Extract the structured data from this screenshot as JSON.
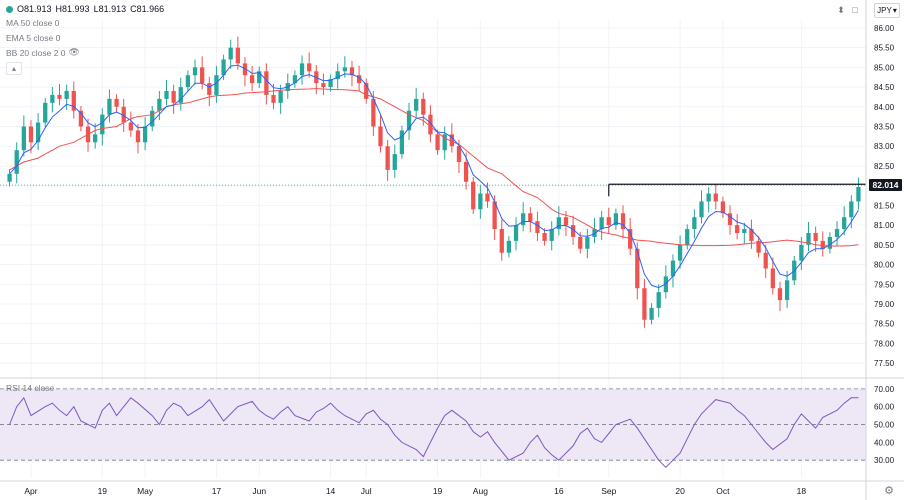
{
  "ohlc": {
    "open": "O81.913",
    "high": "H81.993",
    "low": "L81.913",
    "close": "C81.966",
    "color": "#26a69a"
  },
  "indicators": [
    "MA 50 close 0",
    "EMA 5 close 0",
    "BB 20 close 2 0"
  ],
  "currency": "JPY",
  "rsi_label": "RSI 14 close",
  "colors": {
    "up": "#26a69a",
    "down": "#ef5350",
    "ma": "#ef5350",
    "ema": "#2962ff",
    "rsi": "#7e57c2",
    "rsi_band": "#ede7f6"
  },
  "chart_data": [
    {
      "type": "candlestick",
      "title": "",
      "y_axis_ticks": [
        "86.00",
        "85.50",
        "85.00",
        "84.50",
        "84.00",
        "83.50",
        "83.00",
        "82.50",
        "82.00",
        "81.50",
        "81.00",
        "80.50",
        "80.00",
        "79.50",
        "79.00",
        "78.50",
        "78.00",
        "77.50"
      ],
      "x_axis_ticks": [
        "Apr",
        "19",
        "May",
        "17",
        "Jun",
        "14",
        "Jul",
        "19",
        "Aug",
        "16",
        "Sep",
        "20",
        "Oct",
        "18"
      ],
      "ylim": [
        77.2,
        86.2
      ],
      "current_price": "82.014",
      "resistance_level": 82.01,
      "closes": [
        82.3,
        82.9,
        83.5,
        83.1,
        83.6,
        84.1,
        84.3,
        84.2,
        84.4,
        83.9,
        83.5,
        83.1,
        83.3,
        83.8,
        84.2,
        84.0,
        83.6,
        83.4,
        83.1,
        83.5,
        83.9,
        84.2,
        84.4,
        84.1,
        84.5,
        84.8,
        85.0,
        84.6,
        84.3,
        84.8,
        85.2,
        85.5,
        85.1,
        84.8,
        84.6,
        84.9,
        84.3,
        84.1,
        84.4,
        84.6,
        84.8,
        85.1,
        84.9,
        84.6,
        84.5,
        84.7,
        84.9,
        85.0,
        84.8,
        84.6,
        84.2,
        83.5,
        83.0,
        82.4,
        82.8,
        83.4,
        83.9,
        84.2,
        83.8,
        83.3,
        82.9,
        83.3,
        83.0,
        82.6,
        82.1,
        81.4,
        81.8,
        81.6,
        80.9,
        80.3,
        80.6,
        81.0,
        81.3,
        81.1,
        80.8,
        80.6,
        80.9,
        81.2,
        81.0,
        80.7,
        80.4,
        80.7,
        80.9,
        81.2,
        81.0,
        81.3,
        80.9,
        80.4,
        79.4,
        78.6,
        78.9,
        79.3,
        79.7,
        80.1,
        80.5,
        80.9,
        81.2,
        81.6,
        81.8,
        81.6,
        81.3,
        81.0,
        80.8,
        80.9,
        80.6,
        80.3,
        79.9,
        79.4,
        79.1,
        79.6,
        80.1,
        80.5,
        80.8,
        80.6,
        80.4,
        80.7,
        80.9,
        81.2,
        81.6,
        81.966
      ],
      "ma50": [
        82.4,
        82.5,
        82.6,
        82.7,
        82.8,
        82.9,
        83.0,
        83.1,
        83.2,
        83.3,
        83.4,
        83.45,
        83.5,
        83.6,
        83.7,
        83.75,
        83.8,
        83.9,
        84.0,
        84.05,
        84.1,
        84.15,
        84.2,
        84.25,
        84.28,
        84.3,
        84.32,
        84.35,
        84.36,
        84.38,
        84.4,
        84.42,
        84.43,
        84.44,
        84.45,
        84.46,
        84.45,
        84.44,
        84.43,
        84.42,
        84.4,
        84.3,
        84.2,
        84.1,
        84.0,
        83.9,
        83.8,
        83.65,
        83.5,
        83.35,
        83.2,
        83.05,
        82.9,
        82.75,
        82.6,
        82.45,
        82.3,
        82.15,
        82.0,
        81.85,
        81.7,
        81.55,
        81.4,
        81.3,
        81.2,
        81.1,
        81.0,
        80.9,
        80.82,
        80.75,
        80.7,
        80.66,
        80.62,
        80.59,
        80.56,
        80.54,
        80.52,
        80.5,
        80.49,
        80.48,
        80.48,
        80.48,
        80.49,
        80.5,
        80.52,
        80.54,
        80.56,
        80.58,
        80.6,
        80.62,
        80.6,
        80.55,
        80.5,
        80.48,
        80.47,
        80.47,
        80.48,
        80.5
      ],
      "rsi": [
        50,
        60,
        65,
        55,
        60,
        62,
        58,
        55,
        60,
        52,
        48,
        58,
        62,
        55,
        60,
        65,
        62,
        55,
        50,
        58,
        62,
        60,
        55,
        60,
        64,
        58,
        52,
        56,
        60,
        63,
        58,
        55,
        53,
        57,
        60,
        55,
        52,
        57,
        59,
        62,
        58,
        55,
        51,
        56,
        58,
        53,
        50,
        44,
        40,
        36,
        32,
        40,
        48,
        55,
        58,
        52,
        46,
        43,
        46,
        40,
        35,
        30,
        34,
        40,
        44,
        37,
        33,
        30,
        38,
        45,
        48,
        42,
        40,
        45,
        50,
        53,
        48,
        42,
        36,
        30,
        26,
        34,
        42,
        50,
        56,
        60,
        64,
        62,
        58,
        55,
        50,
        45,
        40,
        36,
        42,
        50,
        56,
        52,
        48,
        54,
        58,
        62,
        65,
        65
      ],
      "rsi_levels": [
        30,
        50,
        70
      ],
      "rsi_ticks": [
        "70.00",
        "60.00",
        "50.00",
        "40.00",
        "30.00"
      ]
    }
  ]
}
